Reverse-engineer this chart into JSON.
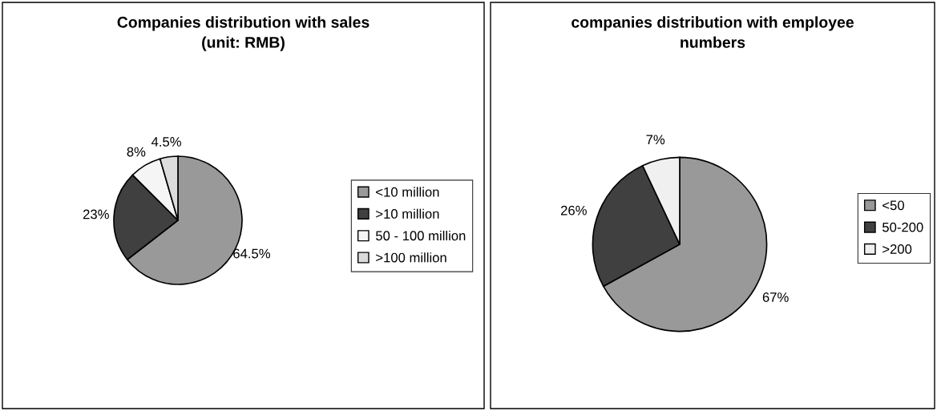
{
  "chart_data": [
    {
      "type": "pie",
      "title": "Companies distribution with sales\n(unit: RMB)",
      "categories": [
        "<10 million",
        ">10 million",
        "50 - 100 million",
        ">100 million"
      ],
      "values": [
        64.5,
        23,
        8,
        4.5
      ],
      "value_labels": [
        "64.5%",
        "23%",
        "8%",
        "4.5%"
      ],
      "colors": [
        "#999999",
        "#404040",
        "#f5f5f5",
        "#dcdcdc"
      ],
      "legend": "right"
    },
    {
      "type": "pie",
      "title": "companies distribution with employee\nnumbers",
      "categories": [
        "<50",
        "50-200",
        ">200"
      ],
      "values": [
        67,
        26,
        7
      ],
      "value_labels": [
        "67%",
        "26%",
        "7%"
      ],
      "colors": [
        "#999999",
        "#404040",
        "#f0f0f0"
      ],
      "legend": "right"
    }
  ]
}
